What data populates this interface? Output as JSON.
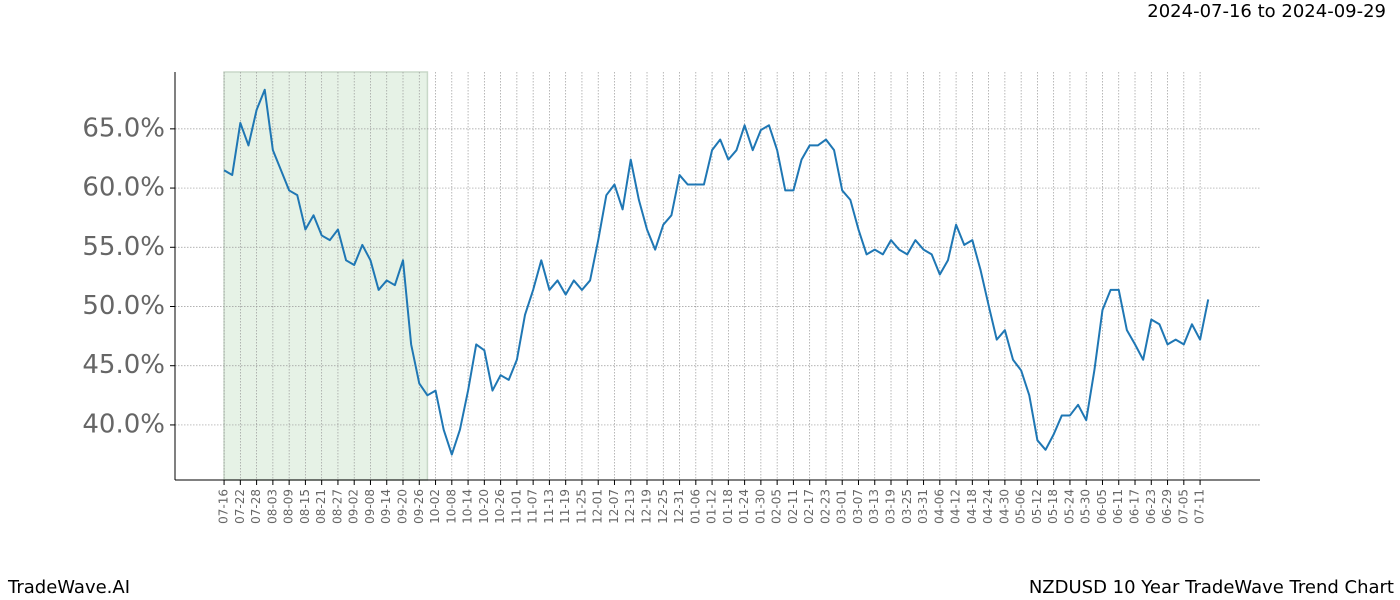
{
  "chart_data": {
    "type": "line",
    "title": "NZDUSD 10 Year TradeWave Trend Chart",
    "brand": "TradeWave.AI",
    "highlight": {
      "label": "2024-07-16 to 2024-09-29",
      "range": [
        0,
        75
      ],
      "color": "#e6f2e6"
    },
    "x": [
      0,
      3,
      6,
      9,
      12,
      15,
      18,
      21,
      24,
      27,
      30,
      33,
      36,
      39,
      42,
      45,
      48,
      51,
      54,
      57,
      60,
      63,
      66,
      69,
      72,
      75,
      78,
      81,
      84,
      87,
      90,
      93,
      96,
      99,
      102,
      105,
      108,
      111,
      114,
      117,
      120,
      123,
      126,
      129,
      132,
      135,
      138,
      141,
      144,
      147,
      150,
      153,
      156,
      159,
      162,
      165,
      168,
      171,
      174,
      177,
      180,
      183,
      186,
      189,
      192,
      195,
      198,
      201,
      204,
      207,
      210,
      213,
      216,
      219,
      222,
      225,
      228,
      231,
      234,
      237,
      240,
      243,
      246,
      249,
      252,
      255,
      258,
      261,
      264,
      267,
      270,
      273,
      276,
      279,
      282,
      285,
      288,
      291,
      294,
      297,
      300,
      303,
      306,
      309,
      312,
      315,
      318,
      321,
      324,
      327,
      330,
      333,
      336,
      339,
      342,
      345,
      348,
      351,
      354,
      357,
      360,
      363
    ],
    "series": [
      {
        "name": "NZDUSD",
        "color": "#1f77b4",
        "values": [
          61.5,
          61.1,
          65.5,
          63.6,
          66.6,
          68.3,
          63.2,
          61.5,
          59.8,
          59.4,
          56.5,
          57.7,
          56.0,
          55.6,
          56.5,
          53.9,
          53.5,
          55.2,
          53.9,
          51.4,
          52.2,
          51.8,
          53.9,
          46.8,
          43.5,
          42.5,
          42.9,
          39.6,
          37.5,
          39.6,
          42.9,
          46.8,
          46.3,
          42.9,
          44.2,
          43.8,
          45.5,
          49.3,
          51.4,
          53.9,
          51.4,
          52.2,
          51.0,
          52.2,
          51.4,
          52.2,
          55.6,
          59.4,
          60.3,
          58.2,
          62.4,
          59.0,
          56.5,
          54.8,
          56.9,
          57.7,
          61.1,
          60.3,
          60.3,
          60.3,
          63.2,
          64.1,
          62.4,
          63.2,
          65.3,
          63.2,
          64.9,
          65.3,
          63.2,
          59.8,
          59.8,
          62.4,
          63.6,
          63.6,
          64.1,
          63.2,
          59.8,
          59.0,
          56.5,
          54.4,
          54.8,
          54.4,
          55.6,
          54.8,
          54.4,
          55.6,
          54.8,
          54.4,
          52.7,
          53.9,
          56.9,
          55.2,
          55.6,
          53.1,
          50.1,
          47.2,
          48.0,
          45.5,
          44.6,
          42.5,
          38.7,
          37.9,
          39.2,
          40.8,
          40.8,
          41.7,
          40.4,
          44.6,
          49.7,
          51.4,
          51.4,
          48.0,
          46.8,
          45.5,
          48.9,
          48.5,
          46.8,
          47.2,
          46.8,
          48.5,
          47.2,
          50.6
        ]
      }
    ],
    "xlim": [
      -18.1,
      382.1
    ],
    "xticks": [
      {
        "value": 0,
        "label": "07-16"
      },
      {
        "value": 6,
        "label": "07-22"
      },
      {
        "value": 12,
        "label": "07-28"
      },
      {
        "value": 18,
        "label": "08-03"
      },
      {
        "value": 24,
        "label": "08-09"
      },
      {
        "value": 30,
        "label": "08-15"
      },
      {
        "value": 36,
        "label": "08-21"
      },
      {
        "value": 42,
        "label": "08-27"
      },
      {
        "value": 48,
        "label": "09-02"
      },
      {
        "value": 54,
        "label": "09-08"
      },
      {
        "value": 60,
        "label": "09-14"
      },
      {
        "value": 66,
        "label": "09-20"
      },
      {
        "value": 72,
        "label": "09-26"
      },
      {
        "value": 78,
        "label": "10-02"
      },
      {
        "value": 84,
        "label": "10-08"
      },
      {
        "value": 90,
        "label": "10-14"
      },
      {
        "value": 96,
        "label": "10-20"
      },
      {
        "value": 102,
        "label": "10-26"
      },
      {
        "value": 108,
        "label": "11-01"
      },
      {
        "value": 114,
        "label": "11-07"
      },
      {
        "value": 120,
        "label": "11-13"
      },
      {
        "value": 126,
        "label": "11-19"
      },
      {
        "value": 132,
        "label": "11-25"
      },
      {
        "value": 138,
        "label": "12-01"
      },
      {
        "value": 144,
        "label": "12-07"
      },
      {
        "value": 150,
        "label": "12-13"
      },
      {
        "value": 156,
        "label": "12-19"
      },
      {
        "value": 162,
        "label": "12-25"
      },
      {
        "value": 168,
        "label": "12-31"
      },
      {
        "value": 174,
        "label": "01-06"
      },
      {
        "value": 180,
        "label": "01-12"
      },
      {
        "value": 186,
        "label": "01-18"
      },
      {
        "value": 192,
        "label": "01-24"
      },
      {
        "value": 198,
        "label": "01-30"
      },
      {
        "value": 204,
        "label": "02-05"
      },
      {
        "value": 210,
        "label": "02-11"
      },
      {
        "value": 216,
        "label": "02-17"
      },
      {
        "value": 222,
        "label": "02-23"
      },
      {
        "value": 228,
        "label": "03-01"
      },
      {
        "value": 234,
        "label": "03-07"
      },
      {
        "value": 240,
        "label": "03-13"
      },
      {
        "value": 246,
        "label": "03-19"
      },
      {
        "value": 252,
        "label": "03-25"
      },
      {
        "value": 258,
        "label": "03-31"
      },
      {
        "value": 264,
        "label": "04-06"
      },
      {
        "value": 270,
        "label": "04-12"
      },
      {
        "value": 276,
        "label": "04-18"
      },
      {
        "value": 282,
        "label": "04-24"
      },
      {
        "value": 288,
        "label": "04-30"
      },
      {
        "value": 294,
        "label": "05-06"
      },
      {
        "value": 300,
        "label": "05-12"
      },
      {
        "value": 306,
        "label": "05-18"
      },
      {
        "value": 312,
        "label": "05-24"
      },
      {
        "value": 318,
        "label": "05-30"
      },
      {
        "value": 324,
        "label": "06-05"
      },
      {
        "value": 330,
        "label": "06-11"
      },
      {
        "value": 336,
        "label": "06-17"
      },
      {
        "value": 342,
        "label": "06-23"
      },
      {
        "value": 348,
        "label": "06-29"
      },
      {
        "value": 354,
        "label": "07-05"
      },
      {
        "value": 360,
        "label": "07-11"
      }
    ],
    "ylim": [
      35.35,
      69.8
    ],
    "yticks": [
      {
        "value": 40,
        "label": "40.0%"
      },
      {
        "value": 45,
        "label": "45.0%"
      },
      {
        "value": 50,
        "label": "50.0%"
      },
      {
        "value": 55,
        "label": "55.0%"
      },
      {
        "value": 60,
        "label": "60.0%"
      },
      {
        "value": 65,
        "label": "65.0%"
      }
    ],
    "grid": true
  }
}
